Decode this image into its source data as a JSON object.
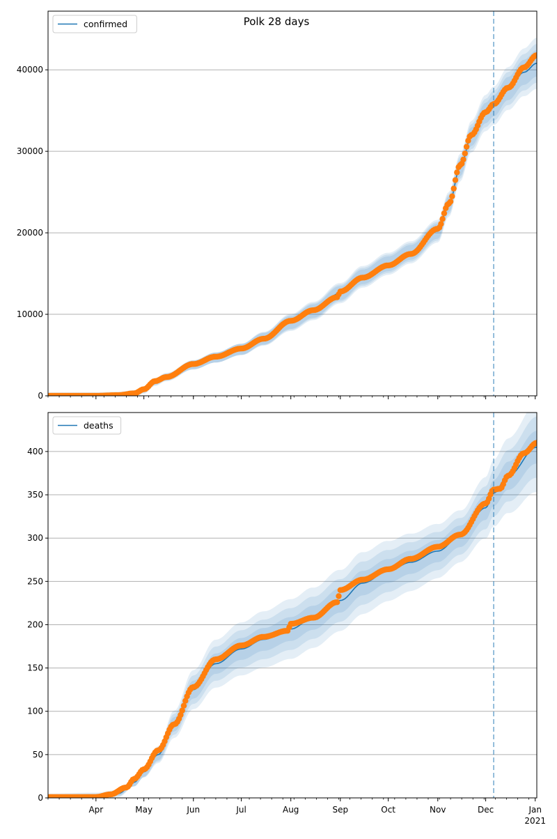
{
  "figure": {
    "title": "Polk 28 days"
  },
  "colors": {
    "line": "#1f77b4",
    "points": "#ff7f0e",
    "band": "#1f77b4",
    "grid": "#b0b0b0"
  },
  "chart_data": [
    {
      "type": "line",
      "name": "confirmed",
      "legend": [
        "confirmed"
      ],
      "legend_position": "top-left",
      "x_range": [
        "2020-03-02",
        "2021-01-02"
      ],
      "ylim": [
        0,
        47200
      ],
      "yticks": [
        0,
        10000,
        20000,
        30000,
        40000
      ],
      "grid": "horizontal",
      "forecast_start": "2020-12-06",
      "line": [
        [
          "2020-03-02",
          0
        ],
        [
          "2020-04-01",
          5
        ],
        [
          "2020-04-15",
          80
        ],
        [
          "2020-04-25",
          250
        ],
        [
          "2020-05-01",
          700
        ],
        [
          "2020-05-08",
          1700
        ],
        [
          "2020-05-15",
          2300
        ],
        [
          "2020-06-01",
          3800
        ],
        [
          "2020-06-15",
          4700
        ],
        [
          "2020-07-01",
          5700
        ],
        [
          "2020-07-15",
          7000
        ],
        [
          "2020-08-01",
          9000
        ],
        [
          "2020-08-15",
          10400
        ],
        [
          "2020-09-01",
          12600
        ],
        [
          "2020-09-15",
          14600
        ],
        [
          "2020-10-01",
          16200
        ],
        [
          "2020-10-15",
          17600
        ],
        [
          "2020-11-01",
          20200
        ],
        [
          "2020-11-08",
          23500
        ],
        [
          "2020-11-15",
          28000
        ],
        [
          "2020-11-22",
          31800
        ],
        [
          "2020-12-01",
          34700
        ],
        [
          "2020-12-06",
          35600
        ],
        [
          "2020-12-15",
          37700
        ],
        [
          "2020-12-25",
          39700
        ],
        [
          "2021-01-02",
          40800
        ]
      ],
      "band_widths": [
        0.04,
        0.07,
        0.1
      ],
      "points": [
        [
          "2020-03-02",
          0
        ],
        [
          "2020-04-01",
          5
        ],
        [
          "2020-04-15",
          80
        ],
        [
          "2020-04-25",
          300
        ],
        [
          "2020-05-01",
          800
        ],
        [
          "2020-05-08",
          1800
        ],
        [
          "2020-05-15",
          2300
        ],
        [
          "2020-06-01",
          3900
        ],
        [
          "2020-06-15",
          4800
        ],
        [
          "2020-07-01",
          5800
        ],
        [
          "2020-07-15",
          7000
        ],
        [
          "2020-08-01",
          9200
        ],
        [
          "2020-08-15",
          10500
        ],
        [
          "2020-08-30",
          12100
        ],
        [
          "2020-09-01",
          12800
        ],
        [
          "2020-09-15",
          14500
        ],
        [
          "2020-10-01",
          16000
        ],
        [
          "2020-10-15",
          17400
        ],
        [
          "2020-11-01",
          20500
        ],
        [
          "2020-11-08",
          23600
        ],
        [
          "2020-11-15",
          28300
        ],
        [
          "2020-11-22",
          32000
        ],
        [
          "2020-12-01",
          34800
        ],
        [
          "2020-12-06",
          35800
        ],
        [
          "2020-12-15",
          37800
        ],
        [
          "2020-12-25",
          40300
        ],
        [
          "2021-01-02",
          41800
        ]
      ]
    },
    {
      "type": "line",
      "name": "deaths",
      "legend": [
        "deaths"
      ],
      "legend_position": "top-left",
      "x_range": [
        "2020-03-02",
        "2021-01-02"
      ],
      "ylim": [
        0,
        445
      ],
      "yticks": [
        0,
        50,
        100,
        150,
        200,
        250,
        300,
        350,
        400
      ],
      "grid": "horizontal",
      "forecast_start": "2020-12-06",
      "xticks": [
        {
          "date": "2020-04-01",
          "label": "Apr"
        },
        {
          "date": "2020-05-01",
          "label": "May"
        },
        {
          "date": "2020-06-01",
          "label": "Jun"
        },
        {
          "date": "2020-07-01",
          "label": "Jul"
        },
        {
          "date": "2020-08-01",
          "label": "Aug"
        },
        {
          "date": "2020-09-01",
          "label": "Sep"
        },
        {
          "date": "2020-10-01",
          "label": "Oct"
        },
        {
          "date": "2020-11-01",
          "label": "Nov"
        },
        {
          "date": "2020-12-01",
          "label": "Dec"
        },
        {
          "date": "2021-01-01",
          "label": "Jan"
        }
      ],
      "x_year_label": "2021",
      "line": [
        [
          "2020-03-02",
          1
        ],
        [
          "2020-04-01",
          2
        ],
        [
          "2020-04-15",
          5
        ],
        [
          "2020-04-25",
          18
        ],
        [
          "2020-05-01",
          30
        ],
        [
          "2020-05-10",
          50
        ],
        [
          "2020-05-20",
          85
        ],
        [
          "2020-06-01",
          125
        ],
        [
          "2020-06-15",
          155
        ],
        [
          "2020-07-01",
          172
        ],
        [
          "2020-07-15",
          183
        ],
        [
          "2020-08-01",
          195
        ],
        [
          "2020-08-15",
          208
        ],
        [
          "2020-09-01",
          228
        ],
        [
          "2020-09-15",
          248
        ],
        [
          "2020-10-01",
          262
        ],
        [
          "2020-10-15",
          272
        ],
        [
          "2020-11-01",
          285
        ],
        [
          "2020-11-15",
          302
        ],
        [
          "2020-12-01",
          335
        ],
        [
          "2020-12-06",
          352
        ],
        [
          "2020-12-15",
          372
        ],
        [
          "2021-01-02",
          405
        ]
      ],
      "band_widths": [
        0.05,
        0.11,
        0.17
      ],
      "points": [
        [
          "2020-03-02",
          1
        ],
        [
          "2020-04-01",
          1
        ],
        [
          "2020-04-10",
          4
        ],
        [
          "2020-04-20",
          12
        ],
        [
          "2020-04-25",
          22
        ],
        [
          "2020-05-01",
          33
        ],
        [
          "2020-05-10",
          55
        ],
        [
          "2020-05-20",
          85
        ],
        [
          "2020-06-01",
          128
        ],
        [
          "2020-06-15",
          160
        ],
        [
          "2020-07-01",
          176
        ],
        [
          "2020-07-15",
          186
        ],
        [
          "2020-07-30",
          193
        ],
        [
          "2020-08-01",
          201
        ],
        [
          "2020-08-15",
          208
        ],
        [
          "2020-08-30",
          226
        ],
        [
          "2020-09-01",
          240
        ],
        [
          "2020-09-15",
          252
        ],
        [
          "2020-10-01",
          264
        ],
        [
          "2020-10-15",
          276
        ],
        [
          "2020-11-01",
          290
        ],
        [
          "2020-11-15",
          304
        ],
        [
          "2020-12-01",
          340
        ],
        [
          "2020-12-06",
          356
        ],
        [
          "2020-12-10",
          357
        ],
        [
          "2020-12-15",
          372
        ],
        [
          "2020-12-25",
          398
        ],
        [
          "2021-01-02",
          410
        ]
      ]
    }
  ]
}
